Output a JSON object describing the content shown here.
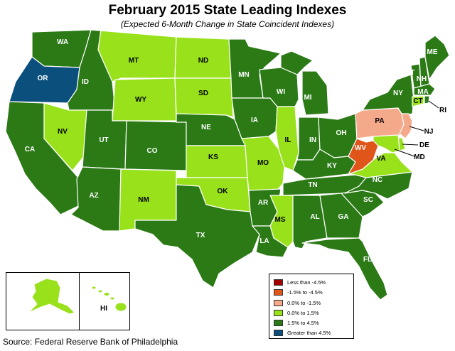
{
  "title": "February 2015 State Leading Indexes",
  "subtitle": "(Expected 6-Month Change in State Coincident Indexes)",
  "source": "Source: Federal Reserve Bank of Philadelphia",
  "colors": {
    "less_than_neg4_5": "#a00000",
    "neg4_5_to_neg1_5": "#e0561a",
    "neg1_5_to_0": "#f5a98b",
    "zero_to_1_5": "#99e11a",
    "one_5_to_4_5": "#2b7a16",
    "greater_than_4_5": "#0b4f7c",
    "border": "#ffffff",
    "water": "#ffffff"
  },
  "legend": [
    {
      "label": "Less than -4.5%",
      "color": "#a00000"
    },
    {
      "label": "-1.5% to -4.5%",
      "color": "#e0561a"
    },
    {
      "label": "0.0% to -1.5%",
      "color": "#f5a98b"
    },
    {
      "label": "0.0% to  1.5%",
      "color": "#99e11a"
    },
    {
      "label": "1.5% to  4.5%",
      "color": "#2b7a16"
    },
    {
      "label": "Greater than 4.5%",
      "color": "#0b4f7c"
    }
  ],
  "states": [
    {
      "abbr": "WA",
      "bin": "1.5% to 4.5%"
    },
    {
      "abbr": "OR",
      "bin": "Greater than 4.5%"
    },
    {
      "abbr": "CA",
      "bin": "1.5% to 4.5%"
    },
    {
      "abbr": "ID",
      "bin": "1.5% to 4.5%"
    },
    {
      "abbr": "NV",
      "bin": "0.0% to 1.5%"
    },
    {
      "abbr": "MT",
      "bin": "0.0% to 1.5%"
    },
    {
      "abbr": "WY",
      "bin": "0.0% to 1.5%"
    },
    {
      "abbr": "UT",
      "bin": "1.5% to 4.5%"
    },
    {
      "abbr": "AZ",
      "bin": "1.5% to 4.5%"
    },
    {
      "abbr": "CO",
      "bin": "1.5% to 4.5%"
    },
    {
      "abbr": "NM",
      "bin": "0.0% to 1.5%"
    },
    {
      "abbr": "ND",
      "bin": "0.0% to 1.5%"
    },
    {
      "abbr": "SD",
      "bin": "0.0% to 1.5%"
    },
    {
      "abbr": "NE",
      "bin": "1.5% to 4.5%"
    },
    {
      "abbr": "KS",
      "bin": "0.0% to 1.5%"
    },
    {
      "abbr": "OK",
      "bin": "0.0% to 1.5%"
    },
    {
      "abbr": "TX",
      "bin": "1.5% to 4.5%"
    },
    {
      "abbr": "MN",
      "bin": "1.5% to 4.5%"
    },
    {
      "abbr": "IA",
      "bin": "1.5% to 4.5%"
    },
    {
      "abbr": "MO",
      "bin": "0.0% to 1.5%"
    },
    {
      "abbr": "AR",
      "bin": "1.5% to 4.5%"
    },
    {
      "abbr": "LA",
      "bin": "1.5% to 4.5%"
    },
    {
      "abbr": "WI",
      "bin": "1.5% to 4.5%"
    },
    {
      "abbr": "IL",
      "bin": "0.0% to 1.5%"
    },
    {
      "abbr": "MI",
      "bin": "1.5% to 4.5%"
    },
    {
      "abbr": "IN",
      "bin": "1.5% to 4.5%"
    },
    {
      "abbr": "OH",
      "bin": "1.5% to 4.5%"
    },
    {
      "abbr": "KY",
      "bin": "1.5% to 4.5%"
    },
    {
      "abbr": "TN",
      "bin": "1.5% to 4.5%"
    },
    {
      "abbr": "MS",
      "bin": "0.0% to 1.5%"
    },
    {
      "abbr": "AL",
      "bin": "1.5% to 4.5%"
    },
    {
      "abbr": "GA",
      "bin": "1.5% to 4.5%"
    },
    {
      "abbr": "FL",
      "bin": "1.5% to 4.5%"
    },
    {
      "abbr": "SC",
      "bin": "1.5% to 4.5%"
    },
    {
      "abbr": "NC",
      "bin": "1.5% to 4.5%"
    },
    {
      "abbr": "VA",
      "bin": "0.0% to 1.5%"
    },
    {
      "abbr": "WV",
      "bin": "-1.5% to -4.5%"
    },
    {
      "abbr": "PA",
      "bin": "0.0% to -1.5%"
    },
    {
      "abbr": "NY",
      "bin": "1.5% to 4.5%"
    },
    {
      "abbr": "VT",
      "bin": "1.5% to 4.5%"
    },
    {
      "abbr": "NH",
      "bin": "1.5% to 4.5%"
    },
    {
      "abbr": "ME",
      "bin": "1.5% to 4.5%"
    },
    {
      "abbr": "MA",
      "bin": "1.5% to 4.5%"
    },
    {
      "abbr": "CT",
      "bin": "0.0% to 1.5%"
    },
    {
      "abbr": "RI",
      "bin": "1.5% to 4.5%"
    },
    {
      "abbr": "NJ",
      "bin": "0.0% to -1.5%"
    },
    {
      "abbr": "DE",
      "bin": "0.0% to 1.5%"
    },
    {
      "abbr": "MD",
      "bin": "0.0% to 1.5%"
    },
    {
      "abbr": "AK",
      "bin": "0.0% to 1.5%"
    },
    {
      "abbr": "HI",
      "bin": "0.0% to 1.5%"
    }
  ]
}
